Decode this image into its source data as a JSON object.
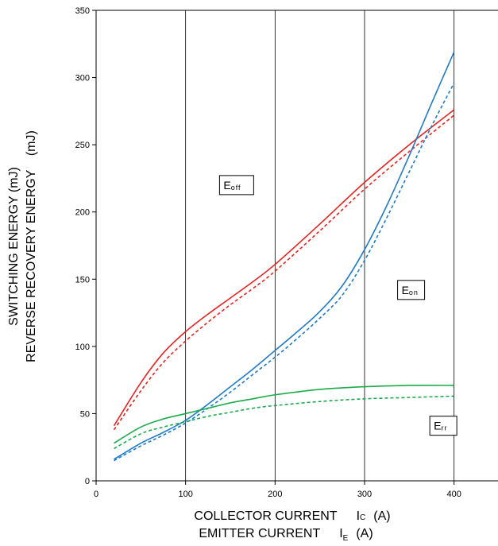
{
  "chart_data": {
    "type": "line",
    "xlabel_lines": [
      {
        "text": "COLLECTOR CURRENT",
        "sym_main": "I",
        "sym_sub": "C",
        "unit": "(A)"
      },
      {
        "text": "EMITTER CURRENT",
        "sym_main": "I",
        "sym_sub": "E",
        "unit": "(A)"
      }
    ],
    "ylabel_lines": [
      "SWITCHING ENERGY (mJ)",
      "REVERSE RECOVERY ENERGY    (mJ)"
    ],
    "xlim": [
      0,
      450
    ],
    "ylim": [
      0,
      350
    ],
    "xticks": [
      0,
      100,
      200,
      300,
      400
    ],
    "yticks": [
      0,
      50,
      100,
      150,
      200,
      250,
      300,
      350
    ],
    "grid": true,
    "labels": [
      {
        "main": "E",
        "sub": "off",
        "x": 157,
        "y": 220
      },
      {
        "main": "E",
        "sub": "on",
        "x": 352,
        "y": 142
      },
      {
        "main": "E",
        "sub": "rr",
        "x": 388,
        "y": 41
      }
    ],
    "series": [
      {
        "color": "#e8231f",
        "dashed": false,
        "x": [
          20,
          50,
          75,
          100,
          125,
          150,
          175,
          200,
          250,
          300,
          350,
          400
        ],
        "y": [
          41,
          73,
          95,
          111,
          124,
          136,
          148,
          161,
          191,
          222,
          250,
          276
        ]
      },
      {
        "color": "#e8231f",
        "dashed": true,
        "x": [
          20,
          50,
          75,
          100,
          125,
          150,
          175,
          200,
          250,
          300,
          350,
          400
        ],
        "y": [
          38,
          67,
          88,
          104,
          118,
          131,
          143,
          156,
          186,
          217,
          245,
          272
        ]
      },
      {
        "color": "#1f7ac8",
        "dashed": false,
        "x": [
          20,
          50,
          75,
          100,
          125,
          150,
          175,
          200,
          225,
          250,
          275,
          300,
          325,
          350,
          375,
          400
        ],
        "y": [
          16,
          28,
          36,
          45,
          57,
          70,
          83,
          97,
          111,
          126,
          145,
          172,
          205,
          242,
          281,
          319
        ]
      },
      {
        "color": "#1f7ac8",
        "dashed": true,
        "x": [
          20,
          50,
          75,
          100,
          125,
          150,
          175,
          200,
          225,
          250,
          275,
          300,
          325,
          350,
          375,
          400
        ],
        "y": [
          15,
          26,
          34,
          43,
          54,
          66,
          79,
          92,
          106,
          121,
          138,
          164,
          196,
          230,
          264,
          296
        ]
      },
      {
        "color": "#1aab4a",
        "dashed": false,
        "x": [
          20,
          50,
          75,
          100,
          125,
          150,
          175,
          200,
          250,
          300,
          350,
          400
        ],
        "y": [
          28,
          40,
          46,
          50,
          54,
          58,
          61,
          64,
          68,
          70,
          71,
          71
        ]
      },
      {
        "color": "#1aab4a",
        "dashed": true,
        "x": [
          20,
          50,
          75,
          100,
          125,
          150,
          175,
          200,
          250,
          300,
          350,
          400
        ],
        "y": [
          24,
          35,
          40,
          44,
          48,
          51,
          54,
          56,
          59,
          61,
          62,
          63
        ]
      }
    ]
  }
}
